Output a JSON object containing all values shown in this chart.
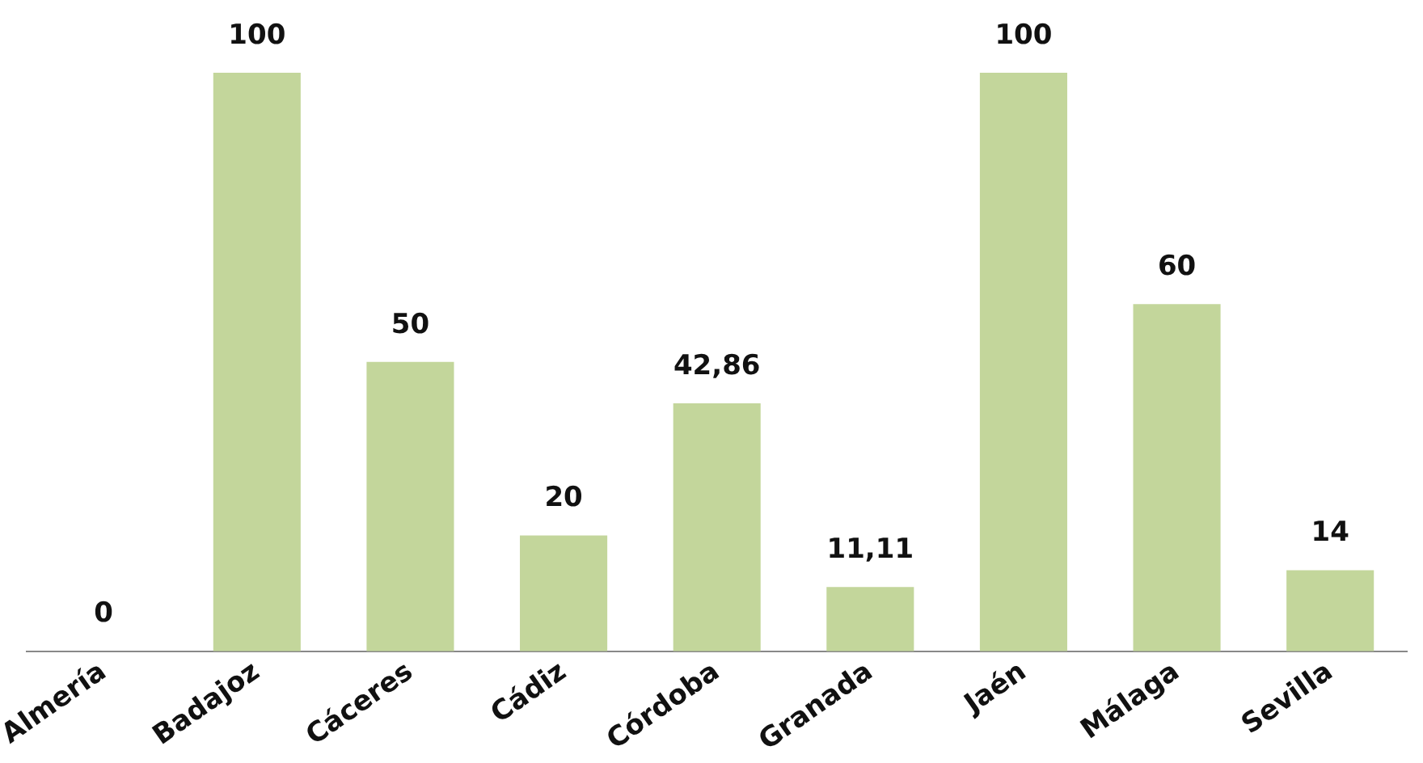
{
  "chart_data": {
    "type": "bar",
    "categories": [
      "Almería",
      "Badajoz",
      "Cáceres",
      "Cádiz",
      "Córdoba",
      "Granada",
      "Jaén",
      "Málaga",
      "Sevilla"
    ],
    "values": [
      0,
      100,
      50,
      20,
      42.86,
      11.11,
      100,
      60,
      14
    ],
    "value_labels": [
      "0",
      "100",
      "50",
      "20",
      "42,86",
      "11,11",
      "100",
      "60",
      "14"
    ],
    "color": "#c3d69b",
    "grid": false,
    "legend": false
  }
}
